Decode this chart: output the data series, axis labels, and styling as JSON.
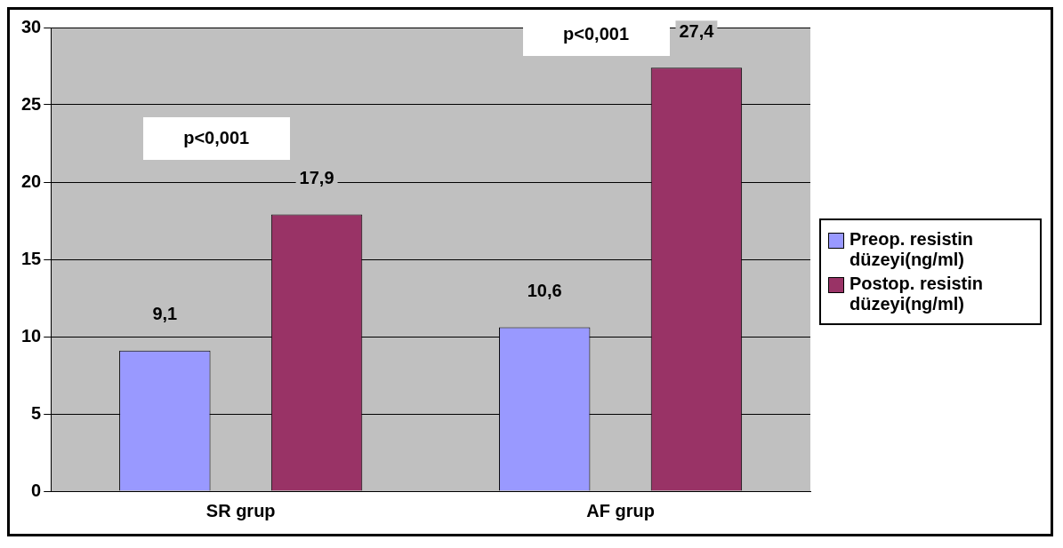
{
  "chart_data": {
    "type": "bar",
    "categories": [
      "SR grup",
      "AF grup"
    ],
    "series": [
      {
        "name": "Preop. resistin düzeyi(ng/ml)",
        "color": "#9999ff",
        "values": [
          9.1,
          10.6
        ],
        "value_labels": [
          "9,1",
          "10,6"
        ]
      },
      {
        "name": "Postop. resistin düzeyi(ng/ml)",
        "color": "#993366",
        "values": [
          17.9,
          27.4
        ],
        "value_labels": [
          "17,9",
          "27,4"
        ]
      }
    ],
    "ylim": [
      0,
      30
    ],
    "yticks": [
      0,
      5,
      10,
      15,
      20,
      25,
      30
    ],
    "grid": "y",
    "legend": "right",
    "annotations": [
      "p<0,001",
      "p<0,001"
    ]
  }
}
